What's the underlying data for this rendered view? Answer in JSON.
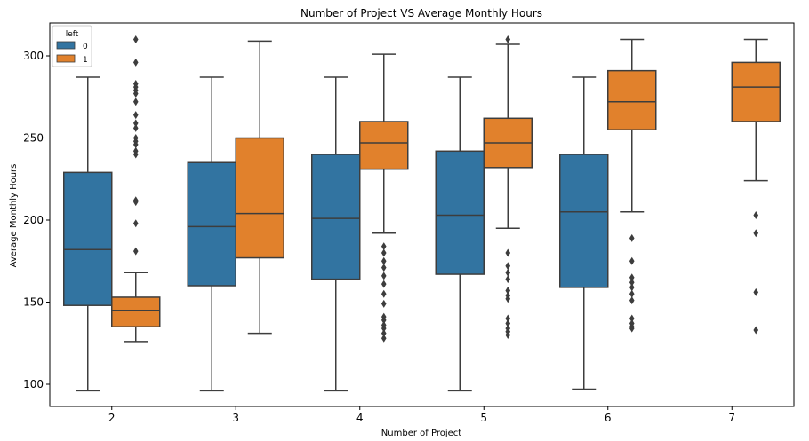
{
  "chart_data": {
    "type": "box",
    "title": "Number of Project VS Average Monthly Hours",
    "xlabel": "Number of Project",
    "ylabel": "Average Monthly Hours",
    "categories": [
      "2",
      "3",
      "4",
      "5",
      "6",
      "7"
    ],
    "yticks": [
      100,
      150,
      200,
      250,
      300
    ],
    "ylim": [
      88,
      322
    ],
    "legend": {
      "title": "left",
      "position": "top-left"
    },
    "series": [
      {
        "name": "0",
        "color": "#3274a1",
        "boxes": [
          {
            "category": "2",
            "whisker_low": 96,
            "q1": 148,
            "median": 182,
            "q3": 229,
            "whisker_high": 287,
            "outliers": []
          },
          {
            "category": "3",
            "whisker_low": 96,
            "q1": 160,
            "median": 196,
            "q3": 235,
            "whisker_high": 287,
            "outliers": []
          },
          {
            "category": "4",
            "whisker_low": 96,
            "q1": 164,
            "median": 201,
            "q3": 240,
            "whisker_high": 287,
            "outliers": []
          },
          {
            "category": "5",
            "whisker_low": 96,
            "q1": 167,
            "median": 203,
            "q3": 242,
            "whisker_high": 287,
            "outliers": []
          },
          {
            "category": "6",
            "whisker_low": 97,
            "q1": 159,
            "median": 205,
            "q3": 240,
            "whisker_high": 287,
            "outliers": []
          }
        ]
      },
      {
        "name": "1",
        "color": "#e1812c",
        "boxes": [
          {
            "category": "2",
            "whisker_low": 126,
            "q1": 135,
            "median": 145,
            "q3": 153,
            "whisker_high": 168,
            "outliers": [
              310,
              296,
              283,
              281,
              279,
              277,
              272,
              264,
              259,
              256,
              250,
              248,
              246,
              242,
              240,
              212,
              211,
              198,
              181
            ]
          },
          {
            "category": "3",
            "whisker_low": 131,
            "q1": 177,
            "median": 204,
            "q3": 250,
            "whisker_high": 309,
            "outliers": []
          },
          {
            "category": "4",
            "whisker_low": 192,
            "q1": 231,
            "median": 247,
            "q3": 260,
            "whisker_high": 301,
            "outliers": [
              184,
              180,
              175,
              171,
              166,
              161,
              155,
              149,
              141,
              139,
              136,
              134,
              131,
              128
            ]
          },
          {
            "category": "5",
            "whisker_low": 195,
            "q1": 232,
            "median": 247,
            "q3": 262,
            "whisker_high": 307,
            "outliers": [
              310,
              180,
              172,
              168,
              164,
              157,
              154,
              152,
              140,
              137,
              134,
              132,
              130
            ]
          },
          {
            "category": "6",
            "whisker_low": 205,
            "q1": 255,
            "median": 272,
            "q3": 291,
            "whisker_high": 310,
            "outliers": [
              189,
              175,
              165,
              162,
              159,
              155,
              151,
              140,
              137,
              135,
              134
            ]
          },
          {
            "category": "7",
            "whisker_low": 224,
            "q1": 260,
            "median": 281,
            "q3": 296,
            "whisker_high": 310,
            "outliers": [
              203,
              192,
              156,
              133
            ]
          }
        ]
      }
    ]
  }
}
